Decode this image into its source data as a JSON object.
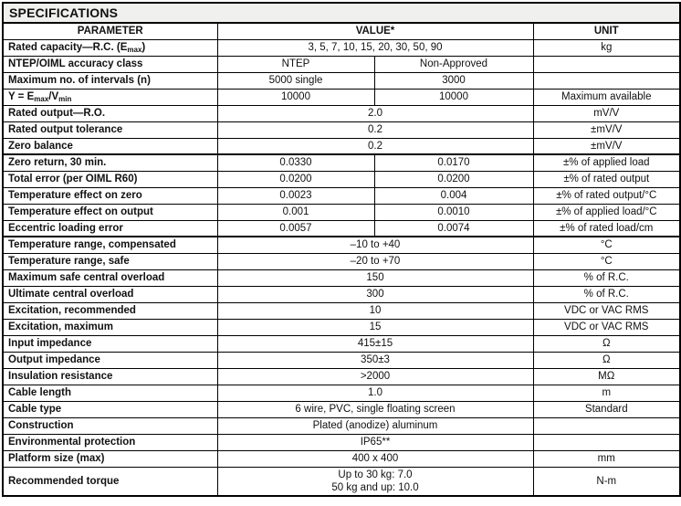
{
  "title": "SPECIFICATIONS",
  "header": {
    "parameter": "PARAMETER",
    "value": "VALUE*",
    "unit": "UNIT"
  },
  "colors": {
    "border": "#000000",
    "title_background": "#f0f0ee",
    "cell_background": "#ffffff",
    "text": "#111111"
  },
  "rows": [
    {
      "param": [
        [
          "Rated capacity—R.C. (E",
          false
        ],
        [
          "max",
          true
        ],
        [
          ")",
          false
        ]
      ],
      "values": [
        "3, 5, 7, 10, 15, 20, 30, 50, 90"
      ],
      "unit": "kg"
    },
    {
      "param": [
        [
          "NTEP/OIML accuracy class",
          false
        ]
      ],
      "values": [
        "NTEP",
        "Non-Approved"
      ],
      "unit": ""
    },
    {
      "param": [
        [
          "Maximum no. of intervals (n)",
          false
        ]
      ],
      "values": [
        "5000 single",
        "3000"
      ],
      "unit": ""
    },
    {
      "param": [
        [
          "Y = E",
          false
        ],
        [
          "max",
          true
        ],
        [
          "/V",
          false
        ],
        [
          "min",
          true
        ]
      ],
      "values": [
        "10000",
        "10000"
      ],
      "unit": "Maximum available"
    },
    {
      "param": [
        [
          "Rated output—R.O.",
          false
        ]
      ],
      "values": [
        "2.0"
      ],
      "unit": "mV/V"
    },
    {
      "param": [
        [
          "Rated output tolerance",
          false
        ]
      ],
      "values": [
        "0.2"
      ],
      "unit": "±mV/V"
    },
    {
      "param": [
        [
          "Zero balance",
          false
        ]
      ],
      "values": [
        "0.2"
      ],
      "unit": "±mV/V"
    },
    {
      "param": [
        [
          "Zero return, 30 min.",
          false
        ]
      ],
      "values": [
        "0.0330",
        "0.0170"
      ],
      "unit": "±% of applied load",
      "sep": true
    },
    {
      "param": [
        [
          "Total error (per OIML R60)",
          false
        ]
      ],
      "values": [
        "0.0200",
        "0.0200"
      ],
      "unit": "±% of rated output"
    },
    {
      "param": [
        [
          "Temperature effect on zero",
          false
        ]
      ],
      "values": [
        "0.0023",
        "0.004"
      ],
      "unit": "±% of rated output/°C"
    },
    {
      "param": [
        [
          "Temperature effect on output",
          false
        ]
      ],
      "values": [
        "0.001",
        "0.0010"
      ],
      "unit": "±% of applied load/°C"
    },
    {
      "param": [
        [
          "Eccentric loading error",
          false
        ]
      ],
      "values": [
        "0.0057",
        "0.0074"
      ],
      "unit": "±% of rated load/cm"
    },
    {
      "param": [
        [
          "Temperature range, compensated",
          false
        ]
      ],
      "values": [
        "–10 to +40"
      ],
      "unit": "°C",
      "sep": true
    },
    {
      "param": [
        [
          "Temperature range, safe",
          false
        ]
      ],
      "values": [
        "–20 to +70"
      ],
      "unit": "°C"
    },
    {
      "param": [
        [
          "Maximum safe central overload",
          false
        ]
      ],
      "values": [
        "150"
      ],
      "unit": "% of R.C."
    },
    {
      "param": [
        [
          "Ultimate central overload",
          false
        ]
      ],
      "values": [
        "300"
      ],
      "unit": "% of R.C."
    },
    {
      "param": [
        [
          "Excitation, recommended",
          false
        ]
      ],
      "values": [
        "10"
      ],
      "unit": "VDC or VAC RMS"
    },
    {
      "param": [
        [
          "Excitation, maximum",
          false
        ]
      ],
      "values": [
        "15"
      ],
      "unit": "VDC or VAC RMS"
    },
    {
      "param": [
        [
          "Input impedance",
          false
        ]
      ],
      "values": [
        "415±15"
      ],
      "unit": "Ω"
    },
    {
      "param": [
        [
          "Output impedance",
          false
        ]
      ],
      "values": [
        "350±3"
      ],
      "unit": "Ω"
    },
    {
      "param": [
        [
          "Insulation resistance",
          false
        ]
      ],
      "values": [
        ">2000"
      ],
      "unit": "MΩ"
    },
    {
      "param": [
        [
          "Cable length",
          false
        ]
      ],
      "values": [
        "1.0"
      ],
      "unit": "m"
    },
    {
      "param": [
        [
          "Cable type",
          false
        ]
      ],
      "values": [
        "6 wire, PVC, single floating screen"
      ],
      "unit": "Standard"
    },
    {
      "param": [
        [
          "Construction",
          false
        ]
      ],
      "values": [
        "Plated (anodize) aluminum"
      ],
      "unit": ""
    },
    {
      "param": [
        [
          "Environmental protection",
          false
        ]
      ],
      "values": [
        "IP65**"
      ],
      "unit": ""
    },
    {
      "param": [
        [
          "Platform size (max)",
          false
        ]
      ],
      "values": [
        "400 x 400"
      ],
      "unit": "mm"
    },
    {
      "param": [
        [
          "Recommended torque",
          false
        ]
      ],
      "values": [
        "Up to 30 kg: 7.0\n50 kg and up: 10.0"
      ],
      "unit": "N-m"
    }
  ]
}
